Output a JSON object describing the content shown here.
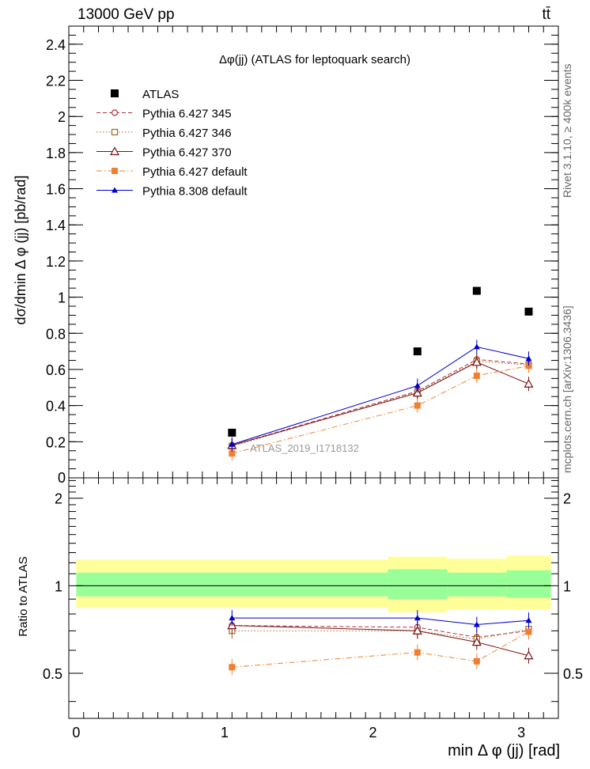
{
  "header": {
    "energy_label": "13000 GeV pp",
    "process_label": "tt̄"
  },
  "side_labels": {
    "rivet": "Rivet 3.1.10, ≥ 400k events",
    "mcplots": "mcplots.cern.ch [arXiv:1306.3436]"
  },
  "chart_data": [
    {
      "type": "scatter",
      "title": "Δφ(jj) (ATLAS for leptoquark search)",
      "ylabel": "dσ/dmin Δ φ (jj) [pb/rad]",
      "xlabel": "min Δ φ (jj) [rad]",
      "watermark": "ATLAS_2019_I1718132",
      "xlim": [
        -0.05,
        3.25
      ],
      "ylim": [
        0,
        2.5
      ],
      "x_ticks": [
        0,
        1,
        2,
        3
      ],
      "y_ticks": [
        0.2,
        0.4,
        0.6,
        0.8,
        1,
        1.2,
        1.4,
        1.6,
        1.8,
        2,
        2.2,
        2.4
      ],
      "y_tick_labels": [
        "0.2",
        "0.4",
        "0.6",
        "0.8",
        "1",
        "1.2",
        "1.4",
        "1.6",
        "1.8",
        "2",
        "2.2",
        "2.4"
      ],
      "y_zero_label": "0",
      "legend_position": "top-left",
      "x": [
        1.05,
        2.3,
        2.7,
        3.05
      ],
      "series": [
        {
          "name": "ATLAS",
          "values": [
            0.25,
            0.7,
            1.035,
            0.92
          ],
          "color": "#000000",
          "marker": "square-filled",
          "line": "none"
        },
        {
          "name": "Pythia 6.427 345",
          "values": [
            0.18,
            0.48,
            0.655,
            0.63
          ],
          "color": "#b0303a",
          "marker": "circle-open",
          "line": "dashed"
        },
        {
          "name": "Pythia 6.427 346",
          "values": [
            0.175,
            0.475,
            0.645,
            0.625
          ],
          "color": "#9a6a2e",
          "marker": "square-open",
          "line": "dotted"
        },
        {
          "name": "Pythia 6.427 370",
          "values": [
            0.18,
            0.47,
            0.64,
            0.52
          ],
          "color": "#7a1010",
          "marker": "triangle-open",
          "line": "solid"
        },
        {
          "name": "Pythia 6.427 default",
          "values": [
            0.135,
            0.4,
            0.565,
            0.62
          ],
          "color": "#f07f30",
          "marker": "square-filled",
          "line": "dashdot"
        },
        {
          "name": "Pythia 8.308 default",
          "values": [
            0.185,
            0.51,
            0.725,
            0.66
          ],
          "color": "#0000cc",
          "marker": "triangle-filled",
          "line": "solid"
        }
      ]
    },
    {
      "type": "scatter",
      "title": "",
      "ylabel": "Ratio to ATLAS",
      "xlabel": "min Δ φ (jj) [rad]",
      "xlim": [
        -0.05,
        3.25
      ],
      "ylim": [
        0.35,
        2.35
      ],
      "y_ticks": [
        0.5,
        1,
        2
      ],
      "y_tick_labels": [
        "0.5",
        "1",
        "2"
      ],
      "x_tick_labels": [
        "0",
        "1",
        "2",
        "3"
      ],
      "bands": {
        "bin_edges": [
          0,
          2.1,
          2.5,
          2.9,
          3.2
        ],
        "yellow": [
          [
            0.84,
            1.23
          ],
          [
            0.81,
            1.26
          ],
          [
            0.83,
            1.24
          ],
          [
            0.83,
            1.27
          ]
        ],
        "green": [
          [
            0.92,
            1.11
          ],
          [
            0.9,
            1.14
          ],
          [
            0.92,
            1.11
          ],
          [
            0.91,
            1.13
          ]
        ],
        "yellow_color": "#ffff99",
        "green_color": "#99ff99"
      },
      "x": [
        1.05,
        2.3,
        2.7,
        3.05
      ],
      "series": [
        {
          "name": "Pythia 6.427 345",
          "values": [
            0.73,
            0.72,
            0.665,
            0.7
          ]
        },
        {
          "name": "Pythia 6.427 346",
          "values": [
            0.7,
            0.7,
            0.655,
            0.71
          ]
        },
        {
          "name": "Pythia 6.427 370",
          "values": [
            0.73,
            0.7,
            0.64,
            0.575
          ]
        },
        {
          "name": "Pythia 6.427 default",
          "values": [
            0.525,
            0.59,
            0.55,
            0.695
          ]
        },
        {
          "name": "Pythia 8.308 default",
          "values": [
            0.775,
            0.775,
            0.735,
            0.76
          ]
        }
      ]
    }
  ]
}
